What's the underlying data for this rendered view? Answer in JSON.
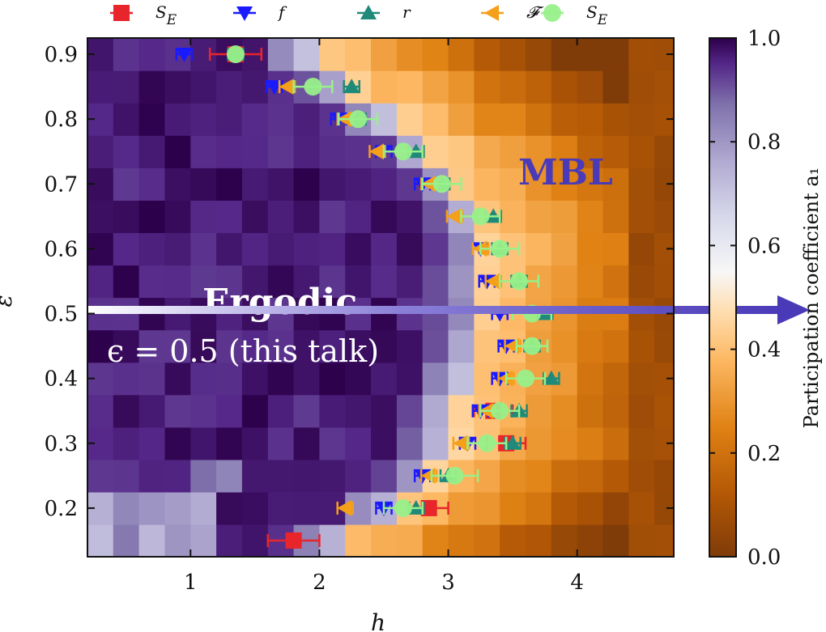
{
  "colors": {
    "ergodic_end": "#2d0a52",
    "mbl_end": "#7f3b08",
    "arrow": "#4a3ab8",
    "SE_tdos": "#e8252b",
    "f": "#1a1aff",
    "r": "#1f8a7a",
    "F": "#f5a01a",
    "SE": "#98f08a"
  },
  "chart_data": {
    "type": "heatmap",
    "xlabel": "h",
    "ylabel": "ε",
    "xlim": [
      0.2,
      4.75
    ],
    "ylim": [
      0.125,
      0.925
    ],
    "x_ticks": [
      "1",
      "2",
      "3",
      "4"
    ],
    "y_ticks": [
      "0.2",
      "0.3",
      "0.4",
      "0.5",
      "0.6",
      "0.7",
      "0.8",
      "0.9"
    ],
    "colorbar": {
      "label": "Participation coefficient a₁",
      "ticks": [
        "0.0",
        "0.2",
        "0.4",
        "0.6",
        "0.8",
        "1.0"
      ],
      "range": [
        0.0,
        1.0
      ]
    },
    "heatmap": {
      "h_values": [
        0.3,
        0.5,
        0.7,
        0.9,
        1.1,
        1.3,
        1.5,
        1.7,
        1.9,
        2.1,
        2.3,
        2.5,
        2.7,
        2.9,
        3.1,
        3.3,
        3.5,
        3.7,
        3.9,
        4.1,
        4.3,
        4.5,
        4.7
      ],
      "eps_values": [
        0.15,
        0.2,
        0.25,
        0.3,
        0.35,
        0.4,
        0.45,
        0.5,
        0.55,
        0.6,
        0.65,
        0.7,
        0.75,
        0.8,
        0.85,
        0.9
      ],
      "boundary_h": [
        2.15,
        2.55,
        2.82,
        3.0,
        3.05,
        3.12,
        3.2,
        3.25,
        3.3,
        3.25,
        3.2,
        3.05,
        2.85,
        2.55,
        2.25,
        1.95
      ],
      "description_of_values": "participation coefficient a1 per cell"
    },
    "series": [
      {
        "name": "S_E",
        "marker": "square",
        "points": [
          [
            1.35,
            0.9
          ],
          [
            1.8,
            0.15
          ],
          [
            2.85,
            0.2
          ],
          [
            3.35,
            0.35
          ],
          [
            3.45,
            0.3
          ]
        ],
        "xerr": [
          0.2,
          0.2,
          0.15,
          0.15,
          0.15
        ]
      },
      {
        "name": "f",
        "marker": "triangle-down",
        "points": [
          [
            0.95,
            0.9
          ],
          [
            1.65,
            0.85
          ],
          [
            2.15,
            0.8
          ],
          [
            2.5,
            0.75
          ],
          [
            2.8,
            0.7
          ],
          [
            3.25,
            0.6
          ],
          [
            3.3,
            0.55
          ],
          [
            3.4,
            0.5
          ],
          [
            3.45,
            0.45
          ],
          [
            3.4,
            0.4
          ],
          [
            3.25,
            0.35
          ],
          [
            3.15,
            0.3
          ],
          [
            2.8,
            0.25
          ],
          [
            2.5,
            0.2
          ]
        ]
      },
      {
        "name": "r",
        "marker": "triangle-up",
        "points": [
          [
            1.35,
            0.9
          ],
          [
            2.25,
            0.85
          ],
          [
            2.3,
            0.8
          ],
          [
            2.75,
            0.75
          ],
          [
            2.95,
            0.7
          ],
          [
            3.35,
            0.65
          ],
          [
            3.4,
            0.6
          ],
          [
            3.55,
            0.55
          ],
          [
            3.75,
            0.5
          ],
          [
            3.65,
            0.45
          ],
          [
            3.8,
            0.4
          ],
          [
            3.55,
            0.35
          ],
          [
            3.5,
            0.3
          ],
          [
            3.0,
            0.25
          ],
          [
            2.75,
            0.2
          ]
        ]
      },
      {
        "name": "𝓕",
        "marker": "triangle-left",
        "points": [
          [
            1.75,
            0.85
          ],
          [
            2.2,
            0.8
          ],
          [
            2.45,
            0.75
          ],
          [
            2.85,
            0.7
          ],
          [
            3.05,
            0.65
          ],
          [
            3.25,
            0.6
          ],
          [
            3.35,
            0.55
          ],
          [
            3.5,
            0.45
          ],
          [
            3.45,
            0.4
          ],
          [
            3.3,
            0.35
          ],
          [
            3.1,
            0.3
          ],
          [
            2.85,
            0.25
          ],
          [
            2.2,
            0.2
          ]
        ]
      },
      {
        "name": "S_E",
        "marker": "circle",
        "points": [
          [
            1.35,
            0.9
          ],
          [
            1.95,
            0.85
          ],
          [
            2.3,
            0.8
          ],
          [
            2.65,
            0.75
          ],
          [
            2.95,
            0.7
          ],
          [
            3.25,
            0.65
          ],
          [
            3.4,
            0.6
          ],
          [
            3.55,
            0.55
          ],
          [
            3.65,
            0.5
          ],
          [
            3.65,
            0.45
          ],
          [
            3.6,
            0.4
          ],
          [
            3.4,
            0.35
          ],
          [
            3.3,
            0.3
          ],
          [
            3.05,
            0.25
          ],
          [
            2.65,
            0.2
          ]
        ],
        "xerr": [
          0.0,
          0.15,
          0.15,
          0.15,
          0.15,
          0.15,
          0.15,
          0.15,
          0.15,
          0.12,
          0.15,
          0.15,
          0.15,
          0.18,
          0.15
        ]
      }
    ],
    "annotations": {
      "ergodic": "Ergodic",
      "mbl": "MBL",
      "note": "ϵ = 0.5 (this talk)"
    },
    "legend": {
      "placement": "top",
      "entries": [
        {
          "main": "S",
          "sub": "E",
          "series": 0
        },
        {
          "main": "f",
          "sub": "",
          "series": 1
        },
        {
          "main": "r",
          "sub": "",
          "series": 2
        },
        {
          "main": "𝓕",
          "sub": "",
          "series": 3
        },
        {
          "main": "S",
          "sub": "E",
          "series": 4
        }
      ]
    }
  }
}
